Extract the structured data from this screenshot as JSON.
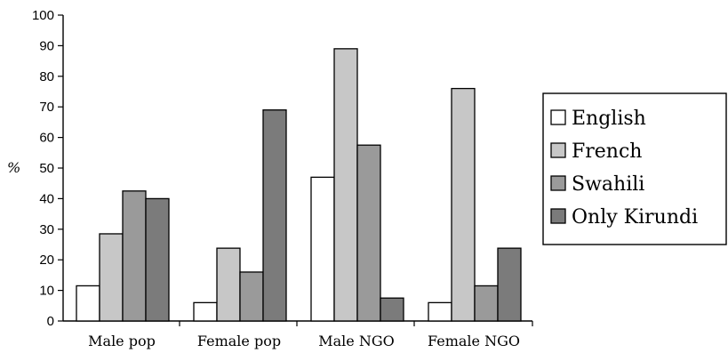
{
  "chart_data": {
    "type": "bar",
    "categories": [
      "Male  pop",
      "Female  pop",
      "Male  NGO",
      "Female  NGO"
    ],
    "series": [
      {
        "name": "English",
        "values": [
          11.5,
          6,
          47,
          6
        ],
        "color": "#ffffff"
      },
      {
        "name": "French",
        "values": [
          28.5,
          23.8,
          89,
          76
        ],
        "color": "#c7c7c7"
      },
      {
        "name": "Swahili",
        "values": [
          42.5,
          16,
          57.5,
          11.5
        ],
        "color": "#9a9a9a"
      },
      {
        "name": "Only  Kirundi",
        "values": [
          40,
          69,
          7.5,
          23.8
        ],
        "color": "#7b7b7b"
      }
    ],
    "ylabel": "%",
    "ylim": [
      0,
      100
    ],
    "yticks": [
      0,
      10,
      20,
      30,
      40,
      50,
      60,
      70,
      80,
      90,
      100
    ],
    "legend_position": "right",
    "grid": false
  }
}
